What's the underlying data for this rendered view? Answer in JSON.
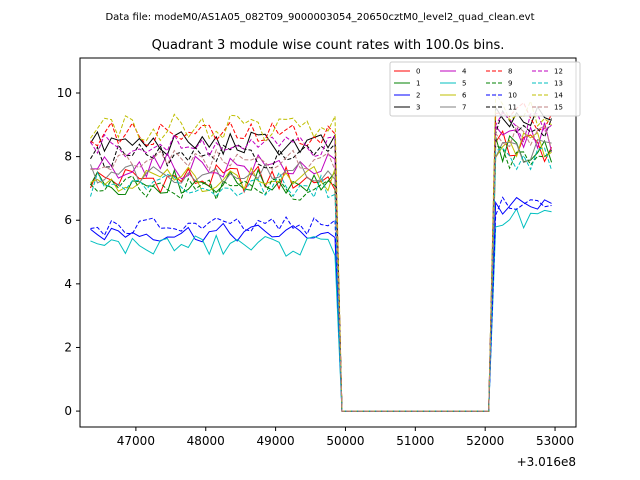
{
  "figure": {
    "suptitle": "Data file: modeM0/AS1A05_082T09_9000003054_20650cztM0_level2_quad_clean.evt"
  },
  "chart_data": {
    "type": "line",
    "title": "Quadrant 3 module wise count rates with 100.0s bins.",
    "xlabel": "",
    "ylabel": "",
    "x_offset_label": "+3.016e8",
    "xlim": [
      46200,
      53300
    ],
    "ylim": [
      -0.5,
      11.1
    ],
    "x_ticks": [
      47000,
      48000,
      49000,
      50000,
      51000,
      52000,
      53000
    ],
    "x_tick_labels": [
      "47000",
      "48000",
      "49000",
      "50000",
      "51000",
      "52000",
      "53000"
    ],
    "y_ticks": [
      0,
      2,
      4,
      6,
      8,
      10
    ],
    "y_tick_labels": [
      "0",
      "2",
      "4",
      "6",
      "8",
      "10"
    ],
    "legend_location": "upper right",
    "legend_columns": 4,
    "segment1": {
      "start": 46350,
      "end": 49850,
      "step": 100
    },
    "gap": {
      "x": [
        49950,
        52050
      ],
      "value": 0
    },
    "segment2": {
      "start": 52150,
      "end": 52950,
      "step": 100
    },
    "series": [
      {
        "name": "0",
        "color": "#ff0000",
        "dash": "solid",
        "mean1": 7.3,
        "mean2": 8.3,
        "amp": 0.45
      },
      {
        "name": "1",
        "color": "#008000",
        "dash": "solid",
        "mean1": 7.2,
        "mean2": 8.2,
        "amp": 0.4
      },
      {
        "name": "2",
        "color": "#0000ff",
        "dash": "solid",
        "mean1": 5.6,
        "mean2": 6.4,
        "amp": 0.3
      },
      {
        "name": "3",
        "color": "#000000",
        "dash": "solid",
        "mean1": 8.4,
        "mean2": 9.1,
        "amp": 0.4
      },
      {
        "name": "4",
        "color": "#bf00bf",
        "dash": "solid",
        "mean1": 7.7,
        "mean2": 8.6,
        "amp": 0.4
      },
      {
        "name": "5",
        "color": "#00bfbf",
        "dash": "solid",
        "mean1": 5.2,
        "mean2": 6.0,
        "amp": 0.35
      },
      {
        "name": "6",
        "color": "#bfbf00",
        "dash": "solid",
        "mean1": 7.3,
        "mean2": 8.3,
        "amp": 0.4
      },
      {
        "name": "7",
        "color": "#808080",
        "dash": "solid",
        "mean1": 7.5,
        "mean2": 8.2,
        "amp": 0.35
      },
      {
        "name": "8",
        "color": "#ff0000",
        "dash": "dashed",
        "mean1": 8.7,
        "mean2": 9.3,
        "amp": 0.4
      },
      {
        "name": "9",
        "color": "#008000",
        "dash": "dashed",
        "mean1": 7.0,
        "mean2": 7.9,
        "amp": 0.4
      },
      {
        "name": "10",
        "color": "#0000ff",
        "dash": "dashed",
        "mean1": 5.8,
        "mean2": 6.5,
        "amp": 0.3
      },
      {
        "name": "11",
        "color": "#000000",
        "dash": "dashed",
        "mean1": 8.0,
        "mean2": 9.0,
        "amp": 0.4
      },
      {
        "name": "12",
        "color": "#bf00bf",
        "dash": "dashed",
        "mean1": 8.3,
        "mean2": 8.9,
        "amp": 0.4
      },
      {
        "name": "13",
        "color": "#00bfbf",
        "dash": "dashed",
        "mean1": 7.1,
        "mean2": 8.0,
        "amp": 0.4
      },
      {
        "name": "14",
        "color": "#bfbf00",
        "dash": "dashed",
        "mean1": 8.9,
        "mean2": 9.5,
        "amp": 0.45
      },
      {
        "name": "15",
        "color": "#bf8080",
        "dash": "dashed",
        "mean1": 7.9,
        "mean2": 8.6,
        "amp": 0.35
      }
    ]
  }
}
